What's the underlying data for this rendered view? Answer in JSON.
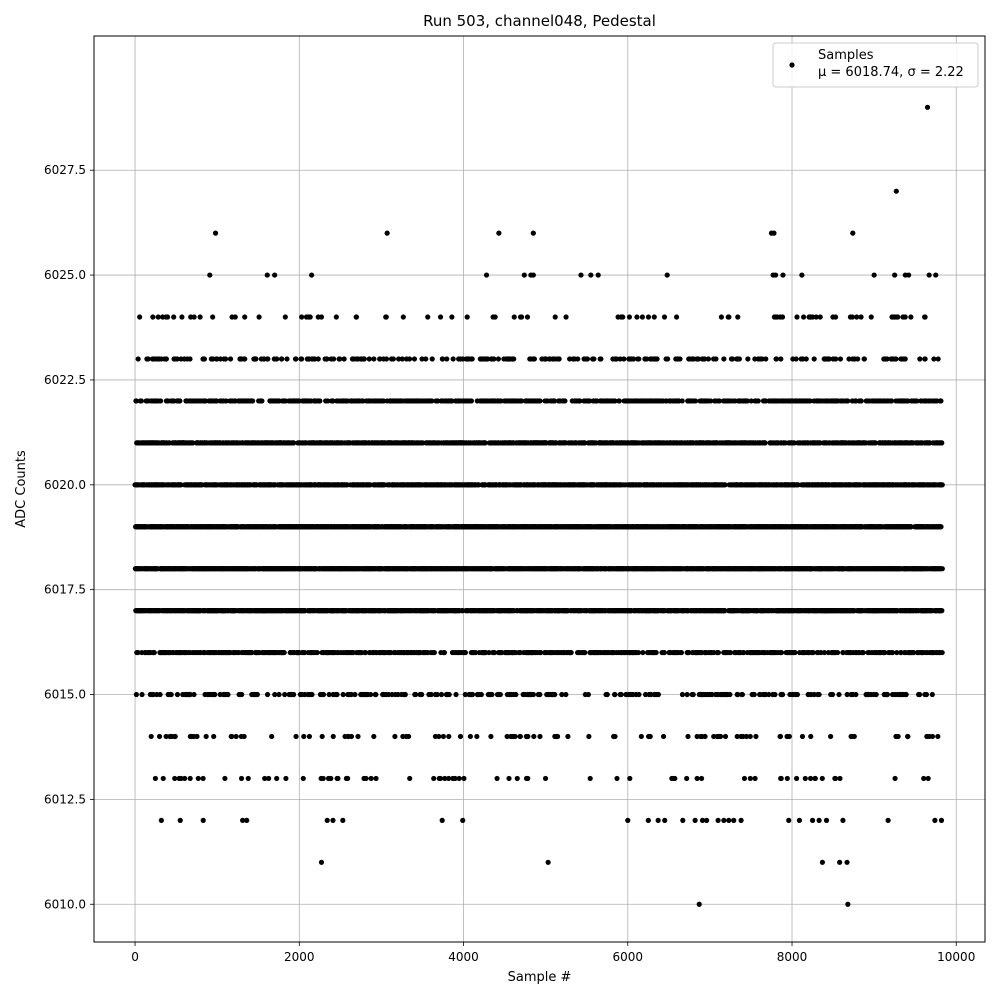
{
  "chart_data": {
    "type": "scatter",
    "title": "Run 503, channel048, Pedestal",
    "xlabel": "Sample #",
    "ylabel": "ADC Counts",
    "xlim": [
      -500,
      10350
    ],
    "ylim": [
      6009.1,
      6030.7
    ],
    "xticks": [
      0,
      2000,
      4000,
      6000,
      8000,
      10000
    ],
    "xtick_labels": [
      "0",
      "2000",
      "4000",
      "6000",
      "8000",
      "10000"
    ],
    "yticks": [
      6010.0,
      6012.5,
      6015.0,
      6017.5,
      6020.0,
      6022.5,
      6025.0,
      6027.5
    ],
    "ytick_labels": [
      "6010.0",
      "6012.5",
      "6015.0",
      "6017.5",
      "6020.0",
      "6022.5",
      "6025.0",
      "6027.5"
    ],
    "grid": true,
    "legend_position": "top-right",
    "marker_color": "#000000",
    "x_range": [
      0,
      9830
    ],
    "series": [
      {
        "name": "Samples",
        "annotation": "μ = 6018.74, σ = 2.22",
        "levels": [
          {
            "y": 6016,
            "density": 0.3
          },
          {
            "y": 6017,
            "density": 0.55
          },
          {
            "y": 6018,
            "density": 0.7
          },
          {
            "y": 6019,
            "density": 0.65
          },
          {
            "y": 6020,
            "density": 0.55
          },
          {
            "y": 6021,
            "density": 0.42
          },
          {
            "y": 6022,
            "density": 0.3
          },
          {
            "y": 6015,
            "density": 0.13
          },
          {
            "y": 6023,
            "density": 0.12
          },
          {
            "y": 6014,
            "density": 0.05
          },
          {
            "y": 6024,
            "density": 0.04
          },
          {
            "y": 6013,
            "density": 0.025
          }
        ],
        "points": [
          [
            320,
            6012
          ],
          [
            550,
            6012
          ],
          [
            830,
            6012
          ],
          [
            1310,
            6012
          ],
          [
            1360,
            6012
          ],
          [
            2340,
            6012
          ],
          [
            2410,
            6012
          ],
          [
            2530,
            6012
          ],
          [
            3740,
            6012
          ],
          [
            3990,
            6012
          ],
          [
            6000,
            6012
          ],
          [
            6250,
            6012
          ],
          [
            6370,
            6012
          ],
          [
            6450,
            6012
          ],
          [
            6670,
            6012
          ],
          [
            6820,
            6012
          ],
          [
            6910,
            6012
          ],
          [
            6960,
            6012
          ],
          [
            7100,
            6012
          ],
          [
            7170,
            6012
          ],
          [
            7230,
            6012
          ],
          [
            7290,
            6012
          ],
          [
            7380,
            6012
          ],
          [
            7960,
            6012
          ],
          [
            8090,
            6012
          ],
          [
            8250,
            6012
          ],
          [
            8330,
            6012
          ],
          [
            8420,
            6012
          ],
          [
            8620,
            6012
          ],
          [
            9170,
            6012
          ],
          [
            9740,
            6012
          ],
          [
            9820,
            6012
          ],
          [
            2270,
            6011
          ],
          [
            5030,
            6011
          ],
          [
            8370,
            6011
          ],
          [
            8580,
            6011
          ],
          [
            8670,
            6011
          ],
          [
            6870,
            6010
          ],
          [
            8680,
            6010
          ],
          [
            910,
            6025
          ],
          [
            1610,
            6025
          ],
          [
            1700,
            6025
          ],
          [
            2150,
            6025
          ],
          [
            4280,
            6025
          ],
          [
            4740,
            6025
          ],
          [
            4820,
            6025
          ],
          [
            4850,
            6025
          ],
          [
            5430,
            6025
          ],
          [
            5550,
            6025
          ],
          [
            5640,
            6025
          ],
          [
            6480,
            6025
          ],
          [
            7770,
            6025
          ],
          [
            7800,
            6025
          ],
          [
            7890,
            6025
          ],
          [
            8120,
            6025
          ],
          [
            9000,
            6025
          ],
          [
            9250,
            6025
          ],
          [
            9380,
            6025
          ],
          [
            9420,
            6025
          ],
          [
            9670,
            6025
          ],
          [
            9750,
            6025
          ],
          [
            980,
            6026
          ],
          [
            3070,
            6026
          ],
          [
            4430,
            6026
          ],
          [
            4850,
            6026
          ],
          [
            7750,
            6026
          ],
          [
            7780,
            6026
          ],
          [
            8740,
            6026
          ],
          [
            9270,
            6027
          ],
          [
            9650,
            6029
          ]
        ]
      }
    ]
  }
}
